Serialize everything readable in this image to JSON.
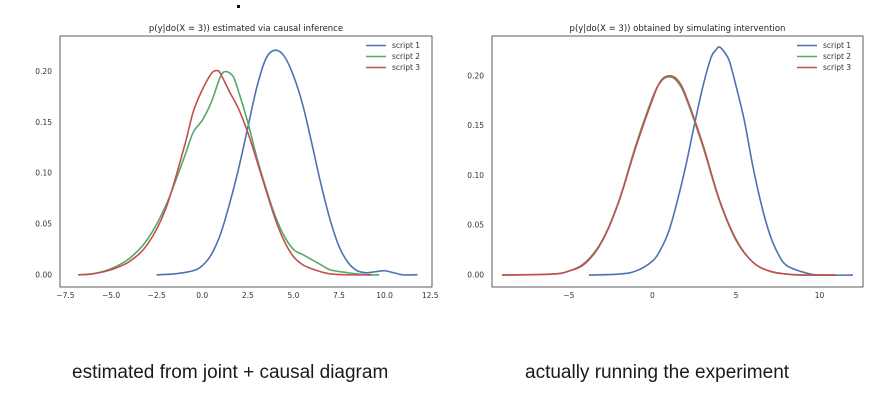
{
  "captions": {
    "left": "estimated from joint + causal diagram",
    "right": "actually running the experiment"
  },
  "chart_data": [
    {
      "type": "line",
      "title": "p(y|do(X = 3)) estimated via causal inference",
      "xlim": [
        -7.8,
        12.6
      ],
      "ylim": [
        -0.012,
        0.235
      ],
      "xticks": [
        -7.5,
        -5.0,
        -2.5,
        0.0,
        2.5,
        5.0,
        7.5,
        10.0,
        12.5
      ],
      "xtick_labels": [
        "−7.5",
        "−5.0",
        "−2.5",
        "0.0",
        "2.5",
        "5.0",
        "7.5",
        "10.0",
        "12.5"
      ],
      "yticks": [
        0.0,
        0.05,
        0.1,
        0.15,
        0.2
      ],
      "ytick_labels": [
        "0.00",
        "0.05",
        "0.10",
        "0.15",
        "0.20"
      ],
      "grid": false,
      "legend": "top-right",
      "series": [
        {
          "name": "script 1",
          "color": "#4c72b0",
          "x": [
            -2.5,
            -1.5,
            -0.5,
            0.0,
            0.5,
            1.0,
            1.5,
            2.0,
            2.5,
            3.0,
            3.5,
            4.0,
            4.5,
            5.0,
            5.5,
            6.0,
            6.5,
            7.0,
            7.5,
            8.0,
            8.5,
            9.0,
            9.5,
            10.0,
            10.5,
            11.0,
            11.8
          ],
          "y": [
            0.0,
            0.001,
            0.004,
            0.009,
            0.02,
            0.04,
            0.07,
            0.105,
            0.145,
            0.185,
            0.213,
            0.221,
            0.215,
            0.196,
            0.168,
            0.13,
            0.09,
            0.055,
            0.028,
            0.012,
            0.004,
            0.002,
            0.003,
            0.004,
            0.002,
            0.0,
            0.0
          ]
        },
        {
          "name": "script 2",
          "color": "#55a868",
          "x": [
            -6.8,
            -6.0,
            -5.0,
            -4.0,
            -3.0,
            -2.0,
            -1.0,
            -0.5,
            0.0,
            0.5,
            1.0,
            1.3,
            1.7,
            2.0,
            2.5,
            3.0,
            3.5,
            4.0,
            4.5,
            5.0,
            5.5,
            6.0,
            6.5,
            7.0,
            8.0,
            9.0,
            9.7
          ],
          "y": [
            0.0,
            0.001,
            0.006,
            0.016,
            0.035,
            0.068,
            0.115,
            0.14,
            0.152,
            0.17,
            0.195,
            0.2,
            0.195,
            0.18,
            0.15,
            0.115,
            0.085,
            0.058,
            0.038,
            0.025,
            0.02,
            0.015,
            0.01,
            0.005,
            0.002,
            0.0,
            0.0
          ]
        },
        {
          "name": "script 3",
          "color": "#c44e52",
          "x": [
            -6.8,
            -6.0,
            -5.0,
            -4.0,
            -3.0,
            -2.0,
            -1.0,
            -0.5,
            0.0,
            0.5,
            0.8,
            1.0,
            1.5,
            2.0,
            2.5,
            3.0,
            3.5,
            4.0,
            4.5,
            5.0,
            5.5,
            6.0,
            6.5,
            7.0,
            8.0,
            9.0,
            9.3
          ],
          "y": [
            0.0,
            0.001,
            0.005,
            0.013,
            0.03,
            0.065,
            0.125,
            0.16,
            0.182,
            0.198,
            0.201,
            0.198,
            0.18,
            0.163,
            0.14,
            0.112,
            0.083,
            0.055,
            0.033,
            0.018,
            0.01,
            0.006,
            0.003,
            0.001,
            0.0,
            0.0,
            0.0
          ]
        }
      ]
    },
    {
      "type": "line",
      "title": "p(y|do(X = 3)) obtained by simulating intervention",
      "xlim": [
        -9.6,
        12.6
      ],
      "ylim": [
        -0.012,
        0.24
      ],
      "xticks": [
        -5,
        0,
        5,
        10
      ],
      "xtick_labels": [
        "−5",
        "0",
        "5",
        "10"
      ],
      "yticks": [
        0.0,
        0.05,
        0.1,
        0.15,
        0.2
      ],
      "ytick_labels": [
        "0.00",
        "0.05",
        "0.10",
        "0.15",
        "0.20"
      ],
      "grid": false,
      "legend": "top-right",
      "series": [
        {
          "name": "script 1",
          "color": "#4c72b0",
          "x": [
            -3.8,
            -2.0,
            -1.0,
            0.0,
            0.5,
            1.0,
            1.5,
            2.0,
            2.5,
            3.0,
            3.5,
            3.8,
            4.0,
            4.3,
            4.6,
            5.0,
            5.5,
            6.0,
            6.5,
            7.0,
            7.5,
            8.0,
            9.0,
            10.0,
            12.0
          ],
          "y": [
            0.0,
            0.001,
            0.004,
            0.014,
            0.026,
            0.045,
            0.075,
            0.11,
            0.15,
            0.188,
            0.218,
            0.226,
            0.229,
            0.224,
            0.215,
            0.19,
            0.155,
            0.11,
            0.072,
            0.042,
            0.022,
            0.01,
            0.003,
            0.0,
            0.0
          ]
        },
        {
          "name": "script 2",
          "color": "#55a868",
          "x": [
            -9.0,
            -6.0,
            -5.0,
            -4.0,
            -3.0,
            -2.0,
            -1.0,
            0.0,
            0.5,
            1.0,
            1.5,
            2.0,
            3.0,
            4.0,
            5.0,
            6.0,
            7.0,
            8.0,
            9.0,
            10.0,
            11.0
          ],
          "y": [
            0.0,
            0.001,
            0.004,
            0.013,
            0.035,
            0.075,
            0.13,
            0.178,
            0.194,
            0.199,
            0.194,
            0.178,
            0.13,
            0.075,
            0.035,
            0.013,
            0.004,
            0.001,
            0.0,
            0.0,
            0.0
          ]
        },
        {
          "name": "script 3",
          "color": "#c44e52",
          "x": [
            -9.0,
            -6.0,
            -5.0,
            -4.0,
            -3.0,
            -2.0,
            -1.0,
            0.0,
            0.5,
            1.0,
            1.5,
            2.0,
            3.0,
            4.0,
            5.0,
            6.0,
            7.0,
            8.0,
            9.0,
            10.0,
            11.0
          ],
          "y": [
            0.0,
            0.001,
            0.004,
            0.012,
            0.034,
            0.074,
            0.128,
            0.176,
            0.195,
            0.2,
            0.196,
            0.18,
            0.132,
            0.076,
            0.036,
            0.013,
            0.004,
            0.001,
            0.0,
            0.0,
            0.0
          ]
        }
      ]
    }
  ]
}
